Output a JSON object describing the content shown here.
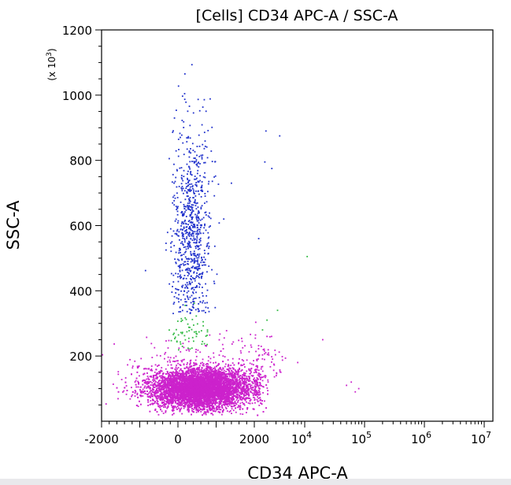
{
  "chart_data": {
    "type": "scatter",
    "title": "[Cells] CD34 APC-A / SSC-A",
    "xlabel": "CD34 APC-A",
    "ylabel": "SSC-A",
    "y_multiplier_label": "(x 10",
    "y_multiplier_exp": "3",
    "y_multiplier_close": ")",
    "y_axis": {
      "min": 0,
      "max": 1200,
      "ticks": [
        200,
        400,
        600,
        800,
        1000,
        1200
      ]
    },
    "x_axis": {
      "scale": "linear-to-log hybrid",
      "linear_ticks": [
        -2000,
        0,
        2000
      ],
      "log_ticks": [
        {
          "base": "10",
          "exp": "4"
        },
        {
          "base": "10",
          "exp": "5"
        },
        {
          "base": "10",
          "exp": "6"
        },
        {
          "base": "10",
          "exp": "7"
        }
      ]
    },
    "series": [
      {
        "color": "#cc22cc",
        "n": 9000,
        "clusters": [
          {
            "x_mean": 600,
            "x_sd": 650,
            "y_mean": 100,
            "y_sd": 30,
            "weight": 0.97
          },
          {
            "x_mean": 1200,
            "x_sd": 1500,
            "y_mean": 170,
            "y_sd": 50,
            "weight": 0.03
          }
        ],
        "outliers": [
          [
            50000,
            110
          ],
          [
            80000,
            100
          ],
          [
            70000,
            90
          ],
          [
            60000,
            120
          ],
          [
            3000,
            260
          ],
          [
            8000,
            180
          ],
          [
            20000,
            250
          ]
        ]
      },
      {
        "color": "#2233cc",
        "n": 800,
        "clusters": [
          {
            "x_mean": 350,
            "x_sd": 250,
            "y_mean": 560,
            "y_sd": 170,
            "y_min": 330,
            "y_max": 1200
          }
        ],
        "outliers": [
          [
            2900,
            890
          ],
          [
            4500,
            875
          ],
          [
            2800,
            795
          ],
          [
            3500,
            775
          ],
          [
            2300,
            560
          ],
          [
            1400,
            730
          ],
          [
            1200,
            620
          ]
        ]
      },
      {
        "color": "#33bb44",
        "n": 60,
        "clusters": [
          {
            "x_mean": 300,
            "x_sd": 250,
            "y_mean": 270,
            "y_sd": 35
          }
        ],
        "outliers": [
          [
            3000,
            310
          ],
          [
            2600,
            280
          ],
          [
            4200,
            340
          ],
          [
            11000,
            505
          ]
        ]
      }
    ]
  }
}
